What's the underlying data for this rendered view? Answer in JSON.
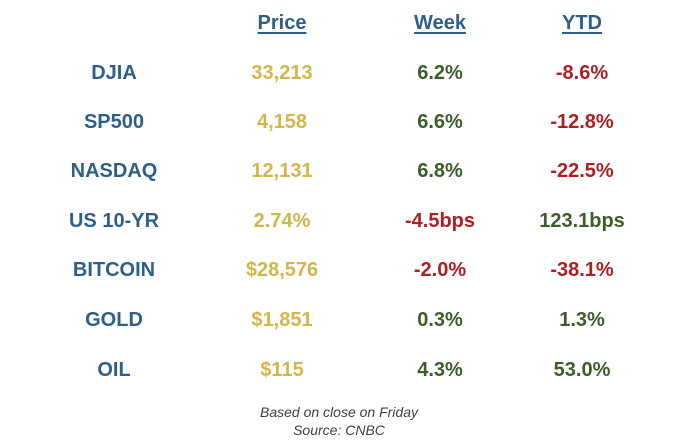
{
  "headers": {
    "price": "Price",
    "week": "Week",
    "ytd": "YTD"
  },
  "rows": [
    {
      "ticker": "DJIA",
      "price": "33,213",
      "week": "6.2%",
      "week_dir": "pos",
      "ytd": "-8.6%",
      "ytd_dir": "neg"
    },
    {
      "ticker": "SP500",
      "price": "4,158",
      "week": "6.6%",
      "week_dir": "pos",
      "ytd": "-12.8%",
      "ytd_dir": "neg"
    },
    {
      "ticker": "NASDAQ",
      "price": "12,131",
      "week": "6.8%",
      "week_dir": "pos",
      "ytd": "-22.5%",
      "ytd_dir": "neg"
    },
    {
      "ticker": "US 10-YR",
      "price": "2.74%",
      "week": "-4.5bps",
      "week_dir": "neg",
      "ytd": "123.1bps",
      "ytd_dir": "pos"
    },
    {
      "ticker": "BITCOIN",
      "price": "$28,576",
      "week": "-2.0%",
      "week_dir": "neg",
      "ytd": "-38.1%",
      "ytd_dir": "neg"
    },
    {
      "ticker": "GOLD",
      "price": "$1,851",
      "week": "0.3%",
      "week_dir": "pos",
      "ytd": "1.3%",
      "ytd_dir": "pos"
    },
    {
      "ticker": "OIL",
      "price": "$115",
      "week": "4.3%",
      "week_dir": "pos",
      "ytd": "53.0%",
      "ytd_dir": "pos"
    }
  ],
  "footer": {
    "line1": "Based on close on Friday",
    "line2": "Source: CNBC"
  },
  "colors": {
    "ticker": "#2e5f8a",
    "price": "#d4b54a",
    "positive": "#3b5e2b",
    "negative": "#b01e24"
  }
}
